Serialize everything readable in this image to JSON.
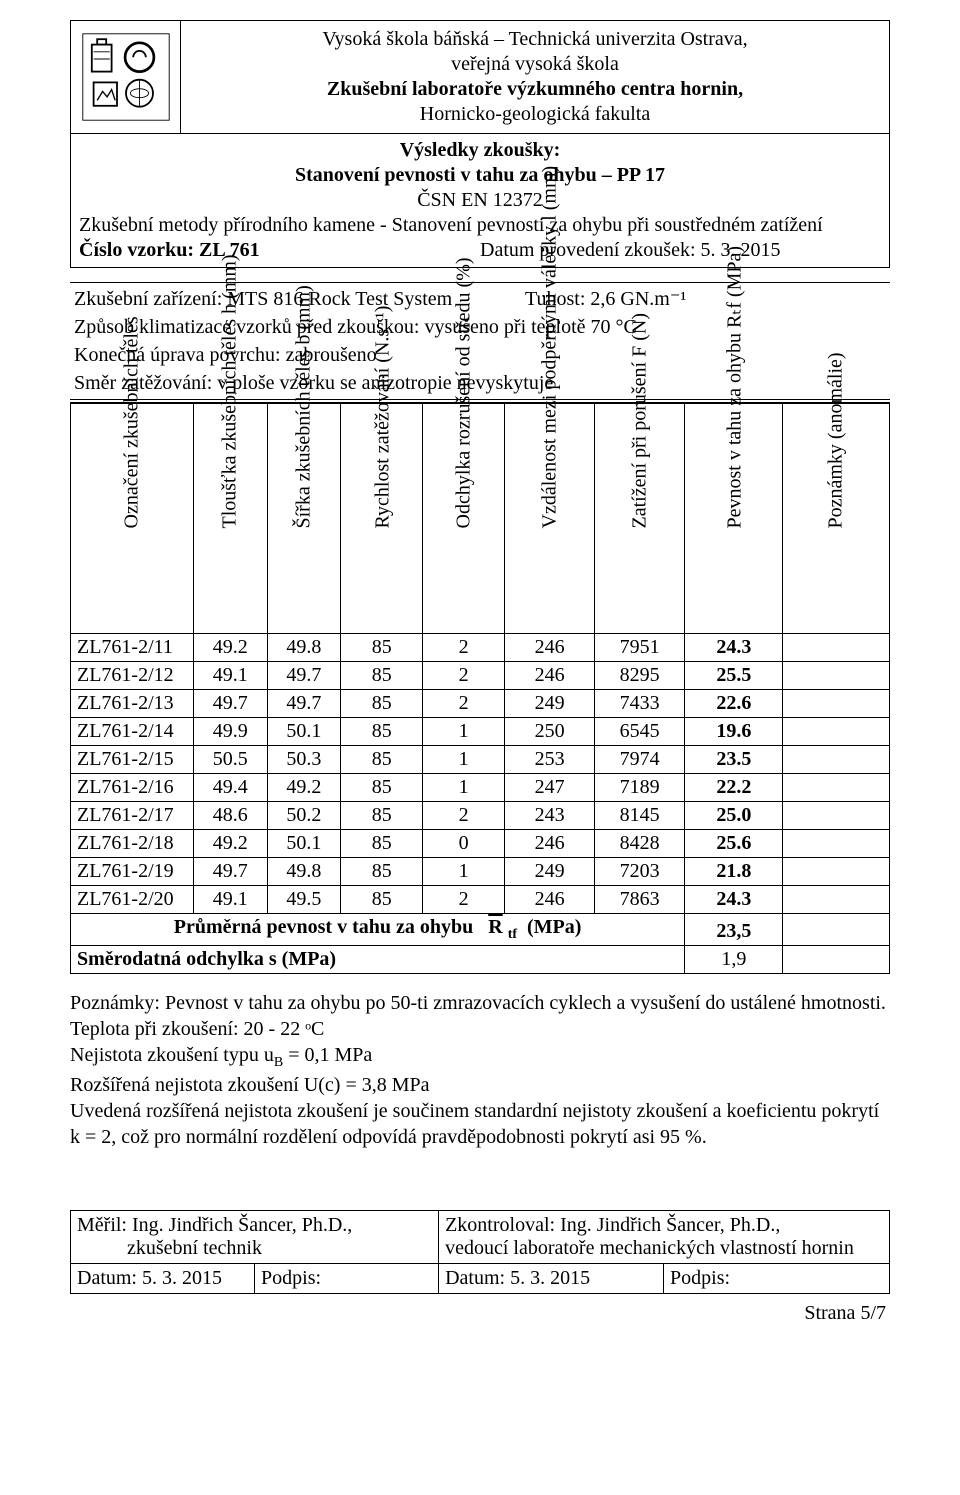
{
  "header": {
    "logo_text": "Zkušební laboratoře výzkumného centra hornin",
    "line1": "Vysoká škola báňská – Technická univerzita Ostrava,",
    "line2": "veřejná vysoká škola",
    "line3": "Zkušební laboratoře výzkumného centra hornin,",
    "line4": "Hornicko-geologická fakulta"
  },
  "subheader": {
    "title": "Výsledky zkoušky:",
    "subtitle_pre": "Stanovení",
    "subtitle_bold": " pevnosti v tahu za ohybu – PP 17",
    "standard": "ČSN EN 12372",
    "method": "Zkušební metody přírodního kamene -  Stanovení pevnosti za ohybu při soustředném zatížení",
    "sample_label": "Číslo vzorku: ZL 761",
    "date_label": "Datum provedení zkoušek: 5. 3. 2015"
  },
  "info": {
    "equipment_l": "Zkušební zařízení: MTS 816 Rock Test System",
    "equipment_r": "Tuhost:  2,6 GN.m⁻¹",
    "climate": "Způsob klimatizace vzorků před zkouškou: vysušeno při teplotě 70 °C",
    "surface": "Konečná úprava povrchu: zabroušeno",
    "direction": "Směr zatěžování: v ploše vzorku se anizotropie nevyskytuje"
  },
  "table": {
    "columns": [
      "Označení zkušebních těles",
      "Tloušťka zkušebních těles h (mm)",
      "Šířka zkušebních těles  b (mm)",
      "Rychlost zatěžování (N.s⁻¹)",
      "Odchylka rozrušení od středu (%)",
      "Vzdálenost mezi podpěrnými válečky l (mm)",
      "Zatížení při porušení  F (N)",
      "Pevnost v tahu za ohybu Rₜf (MPa)",
      "Poznámky (anomálie)"
    ],
    "col_widths": [
      "15%",
      "9%",
      "9%",
      "10%",
      "10%",
      "11%",
      "11%",
      "12%",
      "13%"
    ],
    "rows": [
      [
        "ZL761-2/11",
        "49.2",
        "49.8",
        "85",
        "2",
        "246",
        "7951",
        "24.3",
        ""
      ],
      [
        "ZL761-2/12",
        "49.1",
        "49.7",
        "85",
        "2",
        "246",
        "8295",
        "25.5",
        ""
      ],
      [
        "ZL761-2/13",
        "49.7",
        "49.7",
        "85",
        "2",
        "249",
        "7433",
        "22.6",
        ""
      ],
      [
        "ZL761-2/14",
        "49.9",
        "50.1",
        "85",
        "1",
        "250",
        "6545",
        "19.6",
        ""
      ],
      [
        "ZL761-2/15",
        "50.5",
        "50.3",
        "85",
        "1",
        "253",
        "7974",
        "23.5",
        ""
      ],
      [
        "ZL761-2/16",
        "49.4",
        "49.2",
        "85",
        "1",
        "247",
        "7189",
        "22.2",
        ""
      ],
      [
        "ZL761-2/17",
        "48.6",
        "50.2",
        "85",
        "2",
        "243",
        "8145",
        "25.0",
        ""
      ],
      [
        "ZL761-2/18",
        "49.2",
        "50.1",
        "85",
        "0",
        "246",
        "8428",
        "25.6",
        ""
      ],
      [
        "ZL761-2/19",
        "49.7",
        "49.8",
        "85",
        "1",
        "249",
        "7203",
        "21.8",
        ""
      ],
      [
        "ZL761-2/20",
        "49.1",
        "49.5",
        "85",
        "2",
        "246",
        "7863",
        "24.3",
        ""
      ]
    ],
    "summary1_label": "Průměrná pevnost v tahu za ohybu   R̅ ₜf  (MPa)",
    "summary1_val": "23,5",
    "summary2_label": "Směrodatná odchylka   s     (MPa)",
    "summary2_val": "1,9"
  },
  "notes": {
    "l1": "Poznámky: Pevnost v tahu za ohybu po 50-ti zmrazovacích cyklech a vysušení do ustálené hmotnosti.",
    "l2": "Teplota při zkoušení: 20 - 22 ᵒC",
    "l3": "Nejistota zkoušení typu u_B = 0,1 MPa",
    "l4": "Rozšířená nejistota zkoušení U(c) = 3,8 MPa",
    "l5": "Uvedená rozšířená nejistota zkoušení je součinem standardní nejistoty zkoušení a koeficientu pokrytí k = 2, což pro normální rozdělení odpovídá pravděpodobnosti pokrytí asi 95 %."
  },
  "footer": {
    "measured_label": "Měřil:",
    "measured_name": " Ing. Jindřich Šancer, Ph.D.,",
    "measured_role": "zkušební technik",
    "checked_label": "Zkontroloval:",
    "checked_name": " Ing. Jindřich Šancer, Ph.D.,",
    "checked_role": "vedoucí laboratoře mechanických vlastností hornin",
    "date1": "Datum: 5. 3. 2015",
    "sign1": "Podpis:",
    "date2": "Datum: 5. 3. 2015",
    "sign2": "Podpis:",
    "page": "Strana 5/7"
  },
  "colors": {
    "text": "#000000",
    "bg": "#ffffff",
    "border": "#000000"
  }
}
